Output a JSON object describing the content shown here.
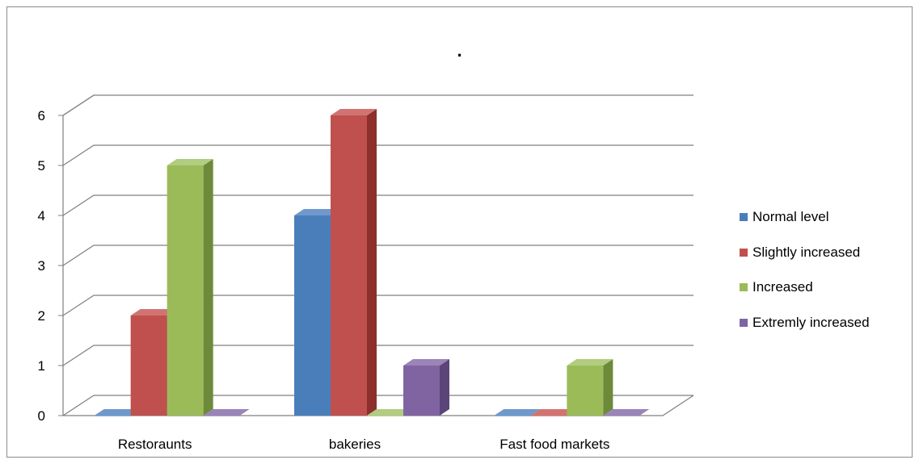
{
  "chart_data": {
    "type": "bar",
    "title": ".",
    "categories": [
      "Restoraunts",
      "bakeries",
      "Fast food markets"
    ],
    "series": [
      {
        "name": "Normal level",
        "values": [
          0,
          4,
          0
        ],
        "color": "#4a7ebb",
        "side": "#2f5b8c",
        "top": "#6f98cc"
      },
      {
        "name": "Slightly increased",
        "values": [
          2,
          6,
          0
        ],
        "color": "#c0504d",
        "side": "#8c2f2d",
        "top": "#d17471"
      },
      {
        "name": "Increased",
        "values": [
          5,
          0,
          1
        ],
        "color": "#9bbb59",
        "side": "#6c8a3a",
        "top": "#b2cc80"
      },
      {
        "name": "Extremly increased",
        "values": [
          0,
          1,
          0
        ],
        "color": "#8064a2",
        "side": "#5b4578",
        "top": "#9a84b8"
      }
    ],
    "y_ticks": [
      "0",
      "1",
      "2",
      "3",
      "4",
      "5",
      "6"
    ],
    "ylim": [
      0,
      6
    ],
    "grid": true,
    "legend_position": "right",
    "style": "3d-clustered-column"
  }
}
